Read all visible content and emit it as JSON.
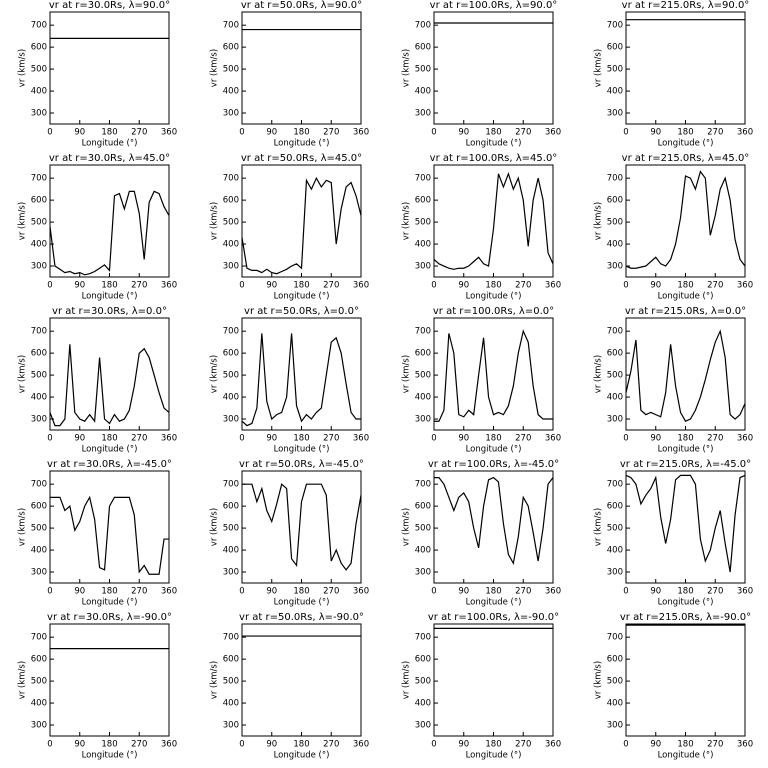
{
  "chart_data": [
    {
      "type": "line",
      "title": "vr at r=30.0Rs, λ=90.0°",
      "xlabel": "Longitude (°)",
      "ylabel": "vr (km/s)",
      "x": [
        0,
        360
      ],
      "values": [
        640,
        640
      ],
      "color": "#000000",
      "xlim": [
        0,
        360
      ],
      "xticks": [
        0,
        90,
        180,
        270,
        360
      ],
      "ylim": [
        250,
        760
      ],
      "yticks": [
        300,
        400,
        500,
        600,
        700
      ]
    },
    {
      "type": "line",
      "title": "vr at r=50.0Rs, λ=90.0°",
      "xlabel": "Longitude (°)",
      "ylabel": "vr (km/s)",
      "x": [
        0,
        360
      ],
      "values": [
        680,
        680
      ],
      "color": "#000000",
      "xlim": [
        0,
        360
      ],
      "xticks": [
        0,
        90,
        180,
        270,
        360
      ],
      "ylim": [
        250,
        760
      ],
      "yticks": [
        300,
        400,
        500,
        600,
        700
      ]
    },
    {
      "type": "line",
      "title": "vr at r=100.0Rs, λ=90.0°",
      "xlabel": "Longitude (°)",
      "ylabel": "vr (km/s)",
      "x": [
        0,
        360
      ],
      "values": [
        710,
        710
      ],
      "color": "#000000",
      "xlim": [
        0,
        360
      ],
      "xticks": [
        0,
        90,
        180,
        270,
        360
      ],
      "ylim": [
        250,
        760
      ],
      "yticks": [
        300,
        400,
        500,
        600,
        700
      ]
    },
    {
      "type": "line",
      "title": "vr at r=215.0Rs, λ=90.0°",
      "xlabel": "Longitude (°)",
      "ylabel": "vr (km/s)",
      "x": [
        0,
        360
      ],
      "values": [
        725,
        725
      ],
      "color": "#000000",
      "xlim": [
        0,
        360
      ],
      "xticks": [
        0,
        90,
        180,
        270,
        360
      ],
      "ylim": [
        250,
        760
      ],
      "yticks": [
        300,
        400,
        500,
        600,
        700
      ]
    },
    {
      "type": "line",
      "title": "vr at r=30.0Rs, λ=45.0°",
      "xlabel": "Longitude (°)",
      "ylabel": "vr (km/s)",
      "x": [
        0,
        15,
        30,
        45,
        60,
        75,
        90,
        105,
        120,
        135,
        150,
        165,
        180,
        195,
        210,
        225,
        240,
        255,
        270,
        285,
        300,
        315,
        330,
        345,
        360
      ],
      "values": [
        480,
        300,
        285,
        270,
        275,
        265,
        270,
        260,
        265,
        275,
        290,
        305,
        280,
        620,
        630,
        560,
        640,
        640,
        540,
        330,
        590,
        640,
        630,
        570,
        530
      ],
      "color": "#000000",
      "xlim": [
        0,
        360
      ],
      "xticks": [
        0,
        90,
        180,
        270,
        360
      ],
      "ylim": [
        250,
        760
      ],
      "yticks": [
        300,
        400,
        500,
        600,
        700
      ]
    },
    {
      "type": "line",
      "title": "vr at r=50.0Rs, λ=45.0°",
      "xlabel": "Longitude (°)",
      "ylabel": "vr (km/s)",
      "x": [
        0,
        15,
        30,
        45,
        60,
        75,
        90,
        105,
        120,
        135,
        150,
        165,
        180,
        195,
        210,
        225,
        240,
        255,
        270,
        285,
        300,
        315,
        330,
        345,
        360
      ],
      "values": [
        430,
        290,
        280,
        280,
        270,
        285,
        270,
        265,
        275,
        285,
        300,
        310,
        290,
        690,
        650,
        700,
        660,
        690,
        680,
        400,
        560,
        660,
        680,
        620,
        530
      ],
      "color": "#000000",
      "xlim": [
        0,
        360
      ],
      "xticks": [
        0,
        90,
        180,
        270,
        360
      ],
      "ylim": [
        250,
        760
      ],
      "yticks": [
        300,
        400,
        500,
        600,
        700
      ]
    },
    {
      "type": "line",
      "title": "vr at r=100.0Rs, λ=45.0°",
      "xlabel": "Longitude (°)",
      "ylabel": "vr (km/s)",
      "x": [
        0,
        15,
        30,
        45,
        60,
        75,
        90,
        105,
        120,
        135,
        150,
        165,
        180,
        195,
        210,
        225,
        240,
        255,
        270,
        285,
        300,
        315,
        330,
        345,
        360
      ],
      "values": [
        330,
        310,
        300,
        290,
        285,
        290,
        290,
        300,
        320,
        340,
        310,
        300,
        470,
        720,
        660,
        720,
        650,
        700,
        600,
        390,
        600,
        700,
        600,
        360,
        310
      ],
      "color": "#000000",
      "xlim": [
        0,
        360
      ],
      "xticks": [
        0,
        90,
        180,
        270,
        360
      ],
      "ylim": [
        250,
        760
      ],
      "yticks": [
        300,
        400,
        500,
        600,
        700
      ]
    },
    {
      "type": "line",
      "title": "vr at r=215.0Rs, λ=45.0°",
      "xlabel": "Longitude (°)",
      "ylabel": "vr (km/s)",
      "x": [
        0,
        15,
        30,
        45,
        60,
        75,
        90,
        105,
        120,
        135,
        150,
        165,
        180,
        195,
        210,
        225,
        240,
        255,
        270,
        285,
        300,
        315,
        330,
        345,
        360
      ],
      "values": [
        300,
        290,
        290,
        295,
        300,
        320,
        340,
        310,
        300,
        330,
        400,
        520,
        710,
        700,
        650,
        730,
        700,
        440,
        530,
        650,
        700,
        600,
        420,
        330,
        300
      ],
      "color": "#000000",
      "xlim": [
        0,
        360
      ],
      "xticks": [
        0,
        90,
        180,
        270,
        360
      ],
      "ylim": [
        250,
        760
      ],
      "yticks": [
        300,
        400,
        500,
        600,
        700
      ]
    },
    {
      "type": "line",
      "title": "vr at r=30.0Rs, λ=0.0°",
      "xlabel": "Longitude (°)",
      "ylabel": "vr (km/s)",
      "x": [
        0,
        15,
        30,
        45,
        60,
        75,
        90,
        105,
        120,
        135,
        150,
        165,
        180,
        195,
        210,
        225,
        240,
        255,
        270,
        285,
        300,
        315,
        330,
        345,
        360
      ],
      "values": [
        330,
        270,
        270,
        300,
        640,
        330,
        300,
        290,
        320,
        290,
        580,
        300,
        280,
        320,
        290,
        300,
        340,
        450,
        600,
        620,
        580,
        500,
        420,
        350,
        330
      ],
      "color": "#000000",
      "xlim": [
        0,
        360
      ],
      "xticks": [
        0,
        90,
        180,
        270,
        360
      ],
      "ylim": [
        250,
        760
      ],
      "yticks": [
        300,
        400,
        500,
        600,
        700
      ]
    },
    {
      "type": "line",
      "title": "vr at r=50.0Rs, λ=0.0°",
      "xlabel": "Longitude (°)",
      "ylabel": "vr (km/s)",
      "x": [
        0,
        15,
        30,
        45,
        60,
        75,
        90,
        105,
        120,
        135,
        150,
        165,
        180,
        195,
        210,
        225,
        240,
        255,
        270,
        285,
        300,
        315,
        330,
        345,
        360
      ],
      "values": [
        290,
        270,
        280,
        350,
        690,
        380,
        300,
        320,
        330,
        400,
        690,
        360,
        290,
        320,
        300,
        330,
        350,
        500,
        650,
        670,
        600,
        460,
        330,
        300,
        300
      ],
      "color": "#000000",
      "xlim": [
        0,
        360
      ],
      "xticks": [
        0,
        90,
        180,
        270,
        360
      ],
      "ylim": [
        250,
        760
      ],
      "yticks": [
        300,
        400,
        500,
        600,
        700
      ]
    },
    {
      "type": "line",
      "title": "vr at r=100.0Rs, λ=0.0°",
      "xlabel": "Longitude (°)",
      "ylabel": "vr (km/s)",
      "x": [
        0,
        15,
        30,
        45,
        60,
        75,
        90,
        105,
        120,
        135,
        150,
        165,
        180,
        195,
        210,
        225,
        240,
        255,
        270,
        285,
        300,
        315,
        330,
        345,
        360
      ],
      "values": [
        290,
        290,
        340,
        690,
        600,
        320,
        310,
        340,
        320,
        500,
        670,
        400,
        320,
        330,
        320,
        360,
        450,
        600,
        700,
        650,
        450,
        320,
        300,
        300,
        300
      ],
      "color": "#000000",
      "xlim": [
        0,
        360
      ],
      "xticks": [
        0,
        90,
        180,
        270,
        360
      ],
      "ylim": [
        250,
        760
      ],
      "yticks": [
        300,
        400,
        500,
        600,
        700
      ]
    },
    {
      "type": "line",
      "title": "vr at r=215.0Rs, λ=0.0°",
      "xlabel": "Longitude (°)",
      "ylabel": "vr (km/s)",
      "x": [
        0,
        15,
        30,
        45,
        60,
        75,
        90,
        105,
        120,
        135,
        150,
        165,
        180,
        195,
        210,
        225,
        240,
        255,
        270,
        285,
        300,
        315,
        330,
        345,
        360
      ],
      "values": [
        420,
        520,
        660,
        340,
        320,
        330,
        320,
        310,
        420,
        640,
        450,
        330,
        290,
        300,
        340,
        400,
        480,
        570,
        650,
        700,
        580,
        320,
        300,
        320,
        370
      ],
      "color": "#000000",
      "xlim": [
        0,
        360
      ],
      "xticks": [
        0,
        90,
        180,
        270,
        360
      ],
      "ylim": [
        250,
        760
      ],
      "yticks": [
        300,
        400,
        500,
        600,
        700
      ]
    },
    {
      "type": "line",
      "title": "vr at r=30.0Rs, λ=-45.0°",
      "xlabel": "Longitude (°)",
      "ylabel": "vr (km/s)",
      "x": [
        0,
        15,
        30,
        45,
        60,
        75,
        90,
        105,
        120,
        135,
        150,
        165,
        180,
        195,
        210,
        225,
        240,
        255,
        270,
        285,
        300,
        315,
        330,
        345,
        360
      ],
      "values": [
        640,
        640,
        640,
        580,
        600,
        490,
        530,
        600,
        640,
        540,
        320,
        310,
        600,
        640,
        640,
        640,
        640,
        560,
        300,
        330,
        290,
        290,
        290,
        450,
        450
      ],
      "color": "#000000",
      "xlim": [
        0,
        360
      ],
      "xticks": [
        0,
        90,
        180,
        270,
        360
      ],
      "ylim": [
        250,
        760
      ],
      "yticks": [
        300,
        400,
        500,
        600,
        700
      ]
    },
    {
      "type": "line",
      "title": "vr at r=50.0Rs, λ=-45.0°",
      "xlabel": "Longitude (°)",
      "ylabel": "vr (km/s)",
      "x": [
        0,
        15,
        30,
        45,
        60,
        75,
        90,
        105,
        120,
        135,
        150,
        165,
        180,
        195,
        210,
        225,
        240,
        255,
        270,
        285,
        300,
        315,
        330,
        345,
        360
      ],
      "values": [
        700,
        700,
        700,
        620,
        680,
        580,
        530,
        610,
        700,
        680,
        360,
        330,
        620,
        700,
        700,
        700,
        700,
        650,
        350,
        400,
        340,
        310,
        340,
        520,
        650
      ],
      "color": "#000000",
      "xlim": [
        0,
        360
      ],
      "xticks": [
        0,
        90,
        180,
        270,
        360
      ],
      "ylim": [
        250,
        760
      ],
      "yticks": [
        300,
        400,
        500,
        600,
        700
      ]
    },
    {
      "type": "line",
      "title": "vr at r=100.0Rs, λ=-45.0°",
      "xlabel": "Longitude (°)",
      "ylabel": "vr (km/s)",
      "x": [
        0,
        15,
        30,
        45,
        60,
        75,
        90,
        105,
        120,
        135,
        150,
        165,
        180,
        195,
        210,
        225,
        240,
        255,
        270,
        285,
        300,
        315,
        330,
        345,
        360
      ],
      "values": [
        730,
        730,
        700,
        640,
        580,
        640,
        660,
        620,
        500,
        410,
        600,
        720,
        730,
        710,
        520,
        380,
        340,
        460,
        640,
        600,
        480,
        350,
        500,
        700,
        730
      ],
      "color": "#000000",
      "xlim": [
        0,
        360
      ],
      "xticks": [
        0,
        90,
        180,
        270,
        360
      ],
      "ylim": [
        250,
        760
      ],
      "yticks": [
        300,
        400,
        500,
        600,
        700
      ]
    },
    {
      "type": "line",
      "title": "vr at r=215.0Rs, λ=-45.0°",
      "xlabel": "Longitude (°)",
      "ylabel": "vr (km/s)",
      "x": [
        0,
        15,
        30,
        45,
        60,
        75,
        90,
        105,
        120,
        135,
        150,
        165,
        180,
        195,
        210,
        225,
        240,
        255,
        270,
        285,
        300,
        315,
        330,
        345,
        360
      ],
      "values": [
        740,
        730,
        700,
        610,
        650,
        680,
        730,
        550,
        430,
        540,
        720,
        740,
        740,
        740,
        700,
        450,
        350,
        400,
        500,
        580,
        430,
        300,
        560,
        730,
        740
      ],
      "color": "#000000",
      "xlim": [
        0,
        360
      ],
      "xticks": [
        0,
        90,
        180,
        270,
        360
      ],
      "ylim": [
        250,
        760
      ],
      "yticks": [
        300,
        400,
        500,
        600,
        700
      ]
    },
    {
      "type": "line",
      "title": "vr at r=30.0Rs, λ=-90.0°",
      "xlabel": "Longitude (°)",
      "ylabel": "vr (km/s)",
      "x": [
        0,
        360
      ],
      "values": [
        648,
        648
      ],
      "color": "#000000",
      "xlim": [
        0,
        360
      ],
      "xticks": [
        0,
        90,
        180,
        270,
        360
      ],
      "ylim": [
        250,
        760
      ],
      "yticks": [
        300,
        400,
        500,
        600,
        700
      ]
    },
    {
      "type": "line",
      "title": "vr at r=50.0Rs, λ=-90.0°",
      "xlabel": "Longitude (°)",
      "ylabel": "vr (km/s)",
      "x": [
        0,
        360
      ],
      "values": [
        705,
        705
      ],
      "color": "#000000",
      "xlim": [
        0,
        360
      ],
      "xticks": [
        0,
        90,
        180,
        270,
        360
      ],
      "ylim": [
        250,
        760
      ],
      "yticks": [
        300,
        400,
        500,
        600,
        700
      ]
    },
    {
      "type": "line",
      "title": "vr at r=100.0Rs, λ=-90.0°",
      "xlabel": "Longitude (°)",
      "ylabel": "vr (km/s)",
      "x": [
        0,
        360
      ],
      "values": [
        740,
        740
      ],
      "color": "#000000",
      "xlim": [
        0,
        360
      ],
      "xticks": [
        0,
        90,
        180,
        270,
        360
      ],
      "ylim": [
        250,
        760
      ],
      "yticks": [
        300,
        400,
        500,
        600,
        700
      ]
    },
    {
      "type": "line",
      "title": "vr at r=215.0Rs, λ=-90.0°",
      "xlabel": "Longitude (°)",
      "ylabel": "vr (km/s)",
      "x": [
        0,
        360
      ],
      "values": [
        755,
        755
      ],
      "color": "#000000",
      "xlim": [
        0,
        360
      ],
      "xticks": [
        0,
        90,
        180,
        270,
        360
      ],
      "ylim": [
        250,
        760
      ],
      "yticks": [
        300,
        400,
        500,
        600,
        700
      ]
    }
  ]
}
